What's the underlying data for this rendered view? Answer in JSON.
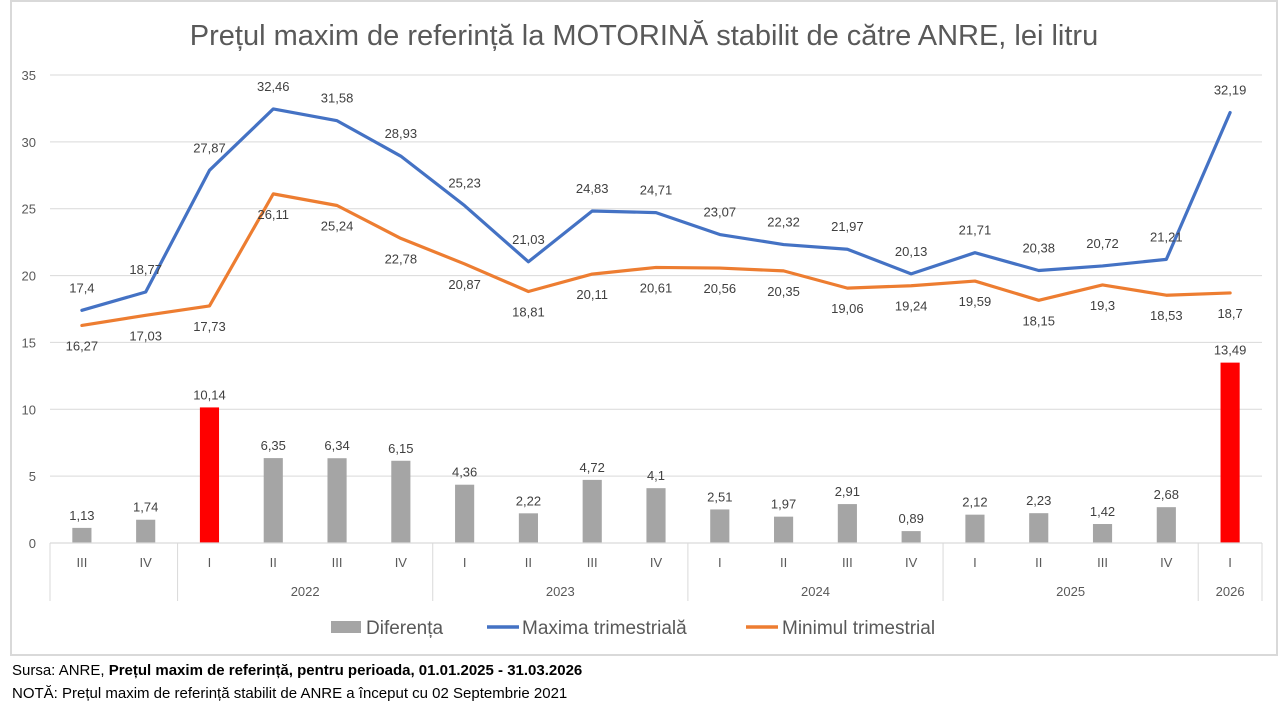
{
  "chart_data": {
    "type": "bar+line",
    "title": "Prețul maxim de referință la MOTORINĂ stabilit de către ANRE, lei litru",
    "xlabel": "",
    "ylabel": "",
    "ylim": [
      0,
      35
    ],
    "yticks": [
      "0",
      "5",
      "10",
      "15",
      "20",
      "25",
      "30",
      "35"
    ],
    "grid": true,
    "legend_position": "bottom",
    "categories": [
      "III",
      "IV",
      "I",
      "II",
      "III",
      "IV",
      "I",
      "II",
      "III",
      "IV",
      "I",
      "II",
      "III",
      "IV",
      "I",
      "II",
      "III",
      "IV",
      "I"
    ],
    "year_groups": [
      {
        "label": "",
        "count": 2
      },
      {
        "label": "2022",
        "count": 4
      },
      {
        "label": "2023",
        "count": 4
      },
      {
        "label": "2024",
        "count": 4
      },
      {
        "label": "2025",
        "count": 4
      },
      {
        "label": "2026",
        "count": 1
      }
    ],
    "series": [
      {
        "name": "Diferența",
        "type": "bar",
        "color": "#a5a5a5",
        "highlight_color": "#ff0000",
        "highlight_indices": [
          2,
          18
        ],
        "values": [
          1.13,
          1.74,
          10.14,
          6.35,
          6.34,
          6.15,
          4.36,
          2.22,
          4.72,
          4.1,
          2.51,
          1.97,
          2.91,
          0.89,
          2.12,
          2.23,
          1.42,
          2.68,
          13.49
        ],
        "labels": [
          "1,13",
          "1,74",
          "10,14",
          "6,35",
          "6,34",
          "6,15",
          "4,36",
          "2,22",
          "4,72",
          "4,1",
          "2,51",
          "1,97",
          "2,91",
          "0,89",
          "2,12",
          "2,23",
          "1,42",
          "2,68",
          "13,49"
        ]
      },
      {
        "name": "Maxima trimestrială",
        "type": "line",
        "color": "#4472c4",
        "values": [
          17.4,
          18.77,
          27.87,
          32.46,
          31.58,
          28.93,
          25.23,
          21.03,
          24.83,
          24.71,
          23.07,
          22.32,
          21.97,
          20.13,
          21.71,
          20.38,
          20.72,
          21.21,
          32.19
        ],
        "labels": [
          "17,4",
          "18,77",
          "27,87",
          "32,46",
          "31,58",
          "28,93",
          "25,23",
          "21,03",
          "24,83",
          "24,71",
          "23,07",
          "22,32",
          "21,97",
          "20,13",
          "21,71",
          "20,38",
          "20,72",
          "21,21",
          "32,19"
        ]
      },
      {
        "name": "Minimul trimestrial",
        "type": "line",
        "color": "#ed7d31",
        "values": [
          16.27,
          17.03,
          17.73,
          26.11,
          25.24,
          22.78,
          20.87,
          18.81,
          20.11,
          20.61,
          20.56,
          20.35,
          19.06,
          19.24,
          19.59,
          18.15,
          19.3,
          18.53,
          18.7
        ],
        "labels": [
          "16,27",
          "17,03",
          "17,73",
          "26,11",
          "25,24",
          "22,78",
          "20,87",
          "18,81",
          "20,11",
          "20,61",
          "20,56",
          "20,35",
          "19,06",
          "19,24",
          "19,59",
          "18,15",
          "19,3",
          "18,53",
          "18,7"
        ]
      }
    ]
  },
  "footer": {
    "source_prefix": "Sursa: ANRE, ",
    "source_bold": "Prețul maxim de referință, pentru perioada, 01.01.2025 - 31.03.2026",
    "note": "NOTĂ:  Prețul maxim de referință stabilit de ANRE a început cu 02 Septembrie 2021"
  }
}
